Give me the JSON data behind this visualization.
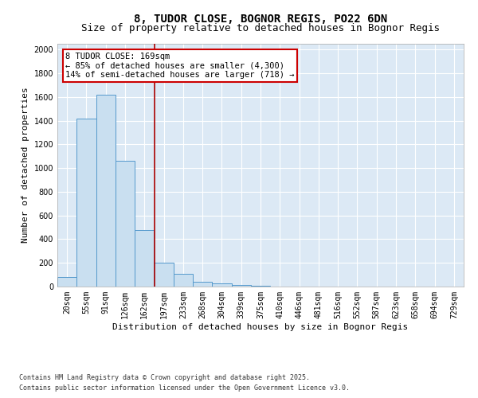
{
  "title_line1": "8, TUDOR CLOSE, BOGNOR REGIS, PO22 6DN",
  "title_line2": "Size of property relative to detached houses in Bognor Regis",
  "xlabel": "Distribution of detached houses by size in Bognor Regis",
  "ylabel": "Number of detached properties",
  "categories": [
    "20sqm",
    "55sqm",
    "91sqm",
    "126sqm",
    "162sqm",
    "197sqm",
    "233sqm",
    "268sqm",
    "304sqm",
    "339sqm",
    "375sqm",
    "410sqm",
    "446sqm",
    "481sqm",
    "516sqm",
    "552sqm",
    "587sqm",
    "623sqm",
    "658sqm",
    "694sqm",
    "729sqm"
  ],
  "values": [
    80,
    1420,
    1620,
    1060,
    480,
    205,
    110,
    40,
    30,
    15,
    10,
    0,
    0,
    0,
    0,
    0,
    0,
    0,
    0,
    0,
    0
  ],
  "bar_color": "#c9dff0",
  "bar_edge_color": "#5599cc",
  "vline_x_index": 4.52,
  "vline_color": "#aa0000",
  "annotation_title": "8 TUDOR CLOSE: 169sqm",
  "annotation_line1": "← 85% of detached houses are smaller (4,300)",
  "annotation_line2": "14% of semi-detached houses are larger (718) →",
  "annotation_box_color": "#ffffff",
  "annotation_border_color": "#cc0000",
  "ylim": [
    0,
    2050
  ],
  "yticks": [
    0,
    200,
    400,
    600,
    800,
    1000,
    1200,
    1400,
    1600,
    1800,
    2000
  ],
  "background_color": "#dce9f5",
  "grid_color": "#ffffff",
  "footer_line1": "Contains HM Land Registry data © Crown copyright and database right 2025.",
  "footer_line2": "Contains public sector information licensed under the Open Government Licence v3.0.",
  "title_fontsize": 10,
  "subtitle_fontsize": 9,
  "axis_label_fontsize": 8,
  "tick_fontsize": 7,
  "annotation_fontsize": 7.5,
  "footer_fontsize": 6
}
